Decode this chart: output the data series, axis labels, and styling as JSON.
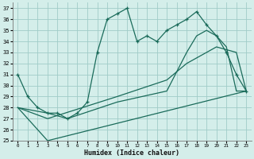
{
  "title": "",
  "xlabel": "Humidex (Indice chaleur)",
  "ylabel": "",
  "bg_color": "#d4eeea",
  "grid_color": "#a0ccc8",
  "line_color": "#1a6b5a",
  "xlim": [
    -0.5,
    23.5
  ],
  "ylim": [
    25,
    37.5
  ],
  "yticks": [
    25,
    26,
    27,
    28,
    29,
    30,
    31,
    32,
    33,
    34,
    35,
    36,
    37
  ],
  "xticks": [
    0,
    1,
    2,
    3,
    4,
    5,
    6,
    7,
    8,
    9,
    10,
    11,
    12,
    13,
    14,
    15,
    16,
    17,
    18,
    19,
    20,
    21,
    22,
    23
  ],
  "series": [
    {
      "x": [
        0,
        1,
        2,
        3,
        4,
        5,
        6,
        7,
        8,
        9,
        10,
        11,
        12,
        13,
        14,
        15,
        16,
        17,
        18,
        19,
        20,
        21,
        22,
        23
      ],
      "y": [
        31,
        29,
        28,
        27.5,
        27.5,
        27,
        27.5,
        28.5,
        33,
        36,
        36.5,
        37,
        34,
        34.5,
        34,
        35,
        35.5,
        36,
        36.7,
        35.5,
        34.5,
        33,
        31,
        29.5
      ],
      "marker": true
    },
    {
      "x": [
        0,
        3,
        5,
        10,
        15,
        17,
        18,
        19,
        20,
        21,
        22,
        23
      ],
      "y": [
        28,
        27.5,
        27,
        28.5,
        29.5,
        33,
        34.5,
        35,
        34.5,
        33.5,
        29.5,
        29.5
      ],
      "marker": false
    },
    {
      "x": [
        0,
        3,
        23
      ],
      "y": [
        28,
        25,
        29.5
      ],
      "marker": false
    },
    {
      "x": [
        0,
        3,
        10,
        15,
        17,
        20,
        22,
        23
      ],
      "y": [
        28,
        27,
        29,
        30.5,
        32,
        33.5,
        33,
        29.5
      ],
      "marker": false
    }
  ]
}
